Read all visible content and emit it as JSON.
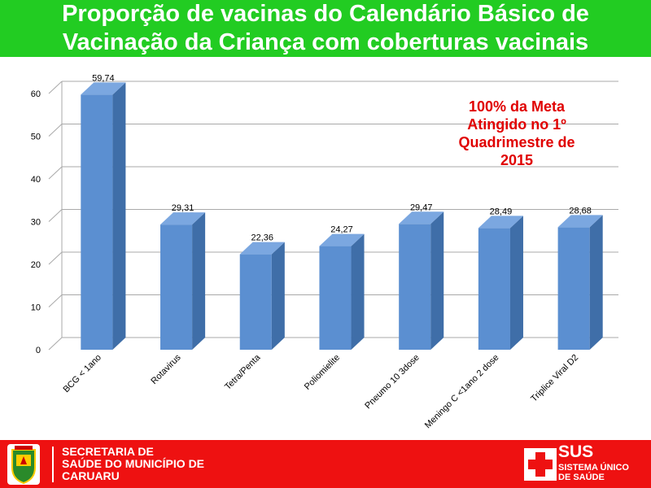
{
  "title": "Proporção de vacinas do Calendário Básico de\nVacinação da Criança com coberturas vacinais",
  "annotation": "100% da Meta\nAtingido no 1º\nQuadrimestre de\n2015",
  "footer": {
    "org_text": "SECRETARIA DE\nSAÚDE DO MUNICÍPIO DE\nCARUARU",
    "sus_logo": "SUS",
    "sus_subtitle": "SISTEMA ÚNICO\nDE SAÚDE",
    "crest_icon": "municipal-crest-icon"
  },
  "colors": {
    "title_bg": "#22cc22",
    "footer_bg": "#ee1111",
    "annotation": "#e00000",
    "bar_front": "#5b8fd1",
    "bar_side": "#3f6ea8",
    "bar_top": "#7ba7e0"
  },
  "chart_data": {
    "type": "bar",
    "title": "",
    "xlabel": "",
    "ylabel": "",
    "ylim": [
      0,
      60
    ],
    "yticks": [
      "0",
      "10",
      "20",
      "30",
      "40",
      "50",
      "60"
    ],
    "grid": true,
    "categories": [
      "BCG < 1ano",
      "Rotavirus",
      "Tetra/Penta",
      "Poliomielite",
      "Pneumo 10 3dose",
      "Meningo C <1ano 2 dose",
      "Triplice Viral D2"
    ],
    "values": [
      59.74,
      29.31,
      22.36,
      24.27,
      29.47,
      28.49,
      28.68
    ],
    "labels": [
      "59,74",
      "29,31",
      "22,36",
      "24,27",
      "29,47",
      "28,49",
      "28,68"
    ]
  }
}
